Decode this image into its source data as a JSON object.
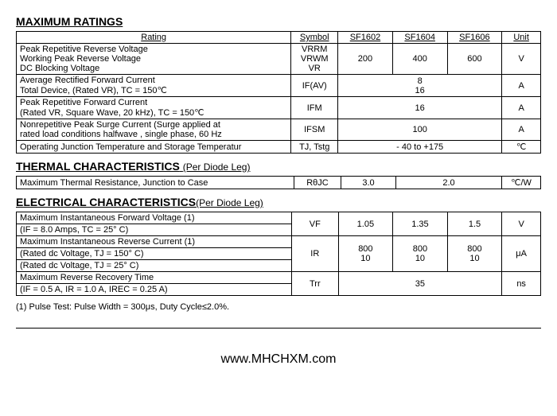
{
  "maxRatings": {
    "title": "MAXIMUM RATINGS",
    "headers": {
      "rating": "Rating",
      "symbol": "Symbol",
      "c1": "SF1602",
      "c2": "SF1604",
      "c3": "SF1606",
      "unit": "Unit"
    },
    "rows": [
      {
        "r": "Peak Repetitive Reverse Voltage\nWorking Peak Reverse Voltage\nDC Blocking Voltage",
        "s": "VRRM\nVRWM\nVR",
        "v1": "200",
        "v2": "400",
        "v3": "600",
        "u": "V"
      },
      {
        "r": "Average Rectified Forward Current\nTotal Device, (Rated VR), TC = 150℃",
        "s": "IF(AV)",
        "span": "8\n16",
        "u": "A"
      },
      {
        "r": "Peak Repetitive Forward Current\n(Rated VR, Square Wave, 20 kHz), TC = 150℃",
        "s": "IFM",
        "span": "16",
        "u": "A"
      },
      {
        "r": "Nonrepetitive Peak Surge Current  (Surge applied at\n rated load conditions halfwave , single phase, 60 Hz",
        "s": "IFSM",
        "span": "100",
        "u": "A"
      },
      {
        "r": "Operating Junction Temperature and Storage Temperatur",
        "s": "TJ, Tstg",
        "span": "- 40 to +175",
        "u": "℃"
      }
    ]
  },
  "thermal": {
    "title": "THERMAL CHARACTERISTICS",
    "sub": "(Per Diode Leg)",
    "r": "Maximum Thermal Resistance, Junction to Case",
    "s": "RθJC",
    "v1": "3.0",
    "v23": "2.0",
    "u": "℃/W"
  },
  "elec": {
    "title": "ELECTRICAL CHARACTERISTICS",
    "sub": "(Per Diode Leg)",
    "rows": [
      {
        "r1": "Maximum Instantaneous Forward Voltage (1)",
        "r2": "(IF = 8.0 Amps, TC = 25° C)",
        "s": "VF",
        "v1": "1.05",
        "v2": "1.35",
        "v3": "1.5",
        "u": "V"
      },
      {
        "r1": "Maximum Instantaneous Reverse Current (1)",
        "r2": "(Rated dc Voltage, TJ = 150° C)",
        "r3": "(Rated dc Voltage, TJ = 25° C)",
        "s": "IR",
        "v1": "800\n10",
        "v2": "800\n10",
        "v3": "800\n10",
        "u": "μA"
      },
      {
        "r1": "Maximum Reverse Recovery Time",
        "r2": "(IF = 0.5 A, IR = 1.0 A, IREC = 0.25 A)",
        "s": "Trr",
        "span": "35",
        "u": "ns"
      }
    ]
  },
  "footnote": "(1) Pulse Test: Pulse Width = 300μs, Duty Cycle≤2.0%.",
  "url": "www.MHCHXM.com"
}
